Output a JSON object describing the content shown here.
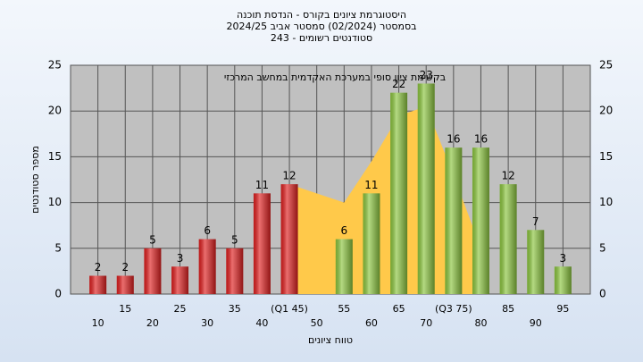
{
  "chart_data": {
    "type": "bar",
    "title": [
      "היסטוגרמת ציונים בקורס - הנדסת תוכנה",
      "בסמסטר  (02/2024)  סמסטר אביב 2024/25",
      "סטודנטים רשומים - 243"
    ],
    "annotation": "בקשימת ציון סופי במערכת האקדמית במחשב המרכזי",
    "x_label": "טווח ציונים",
    "y_label": "מספר סטודנטים",
    "categories": [
      "10",
      "15",
      "20",
      "25",
      "30",
      "35",
      "40",
      "(Q1 45)",
      "50",
      "55",
      "60",
      "65",
      "70",
      "(Q3 75)",
      "80",
      "85",
      "90",
      "95"
    ],
    "values": [
      2,
      2,
      5,
      3,
      6,
      5,
      11,
      12,
      null,
      6,
      11,
      22,
      23,
      16,
      16,
      12,
      7,
      3
    ],
    "colors": [
      "#e02020",
      "#e02020",
      "#e02020",
      "#e02020",
      "#e02020",
      "#e02020",
      "#e02020",
      "#e02020",
      null,
      "#8cc63f",
      "#8cc63f",
      "#8cc63f",
      "#8cc63f",
      "#8cc63f",
      "#8cc63f",
      "#8cc63f",
      "#8cc63f",
      "#8cc63f"
    ],
    "area": {
      "color": "#ffc94a",
      "values": [
        null,
        null,
        null,
        null,
        null,
        null,
        null,
        12,
        11,
        10,
        14.5,
        19.5,
        20.5,
        13,
        5,
        null,
        null,
        null
      ]
    },
    "ylim": [
      0,
      25
    ],
    "yticks": [
      0,
      5,
      10,
      15,
      20,
      25
    ],
    "grid": true
  }
}
